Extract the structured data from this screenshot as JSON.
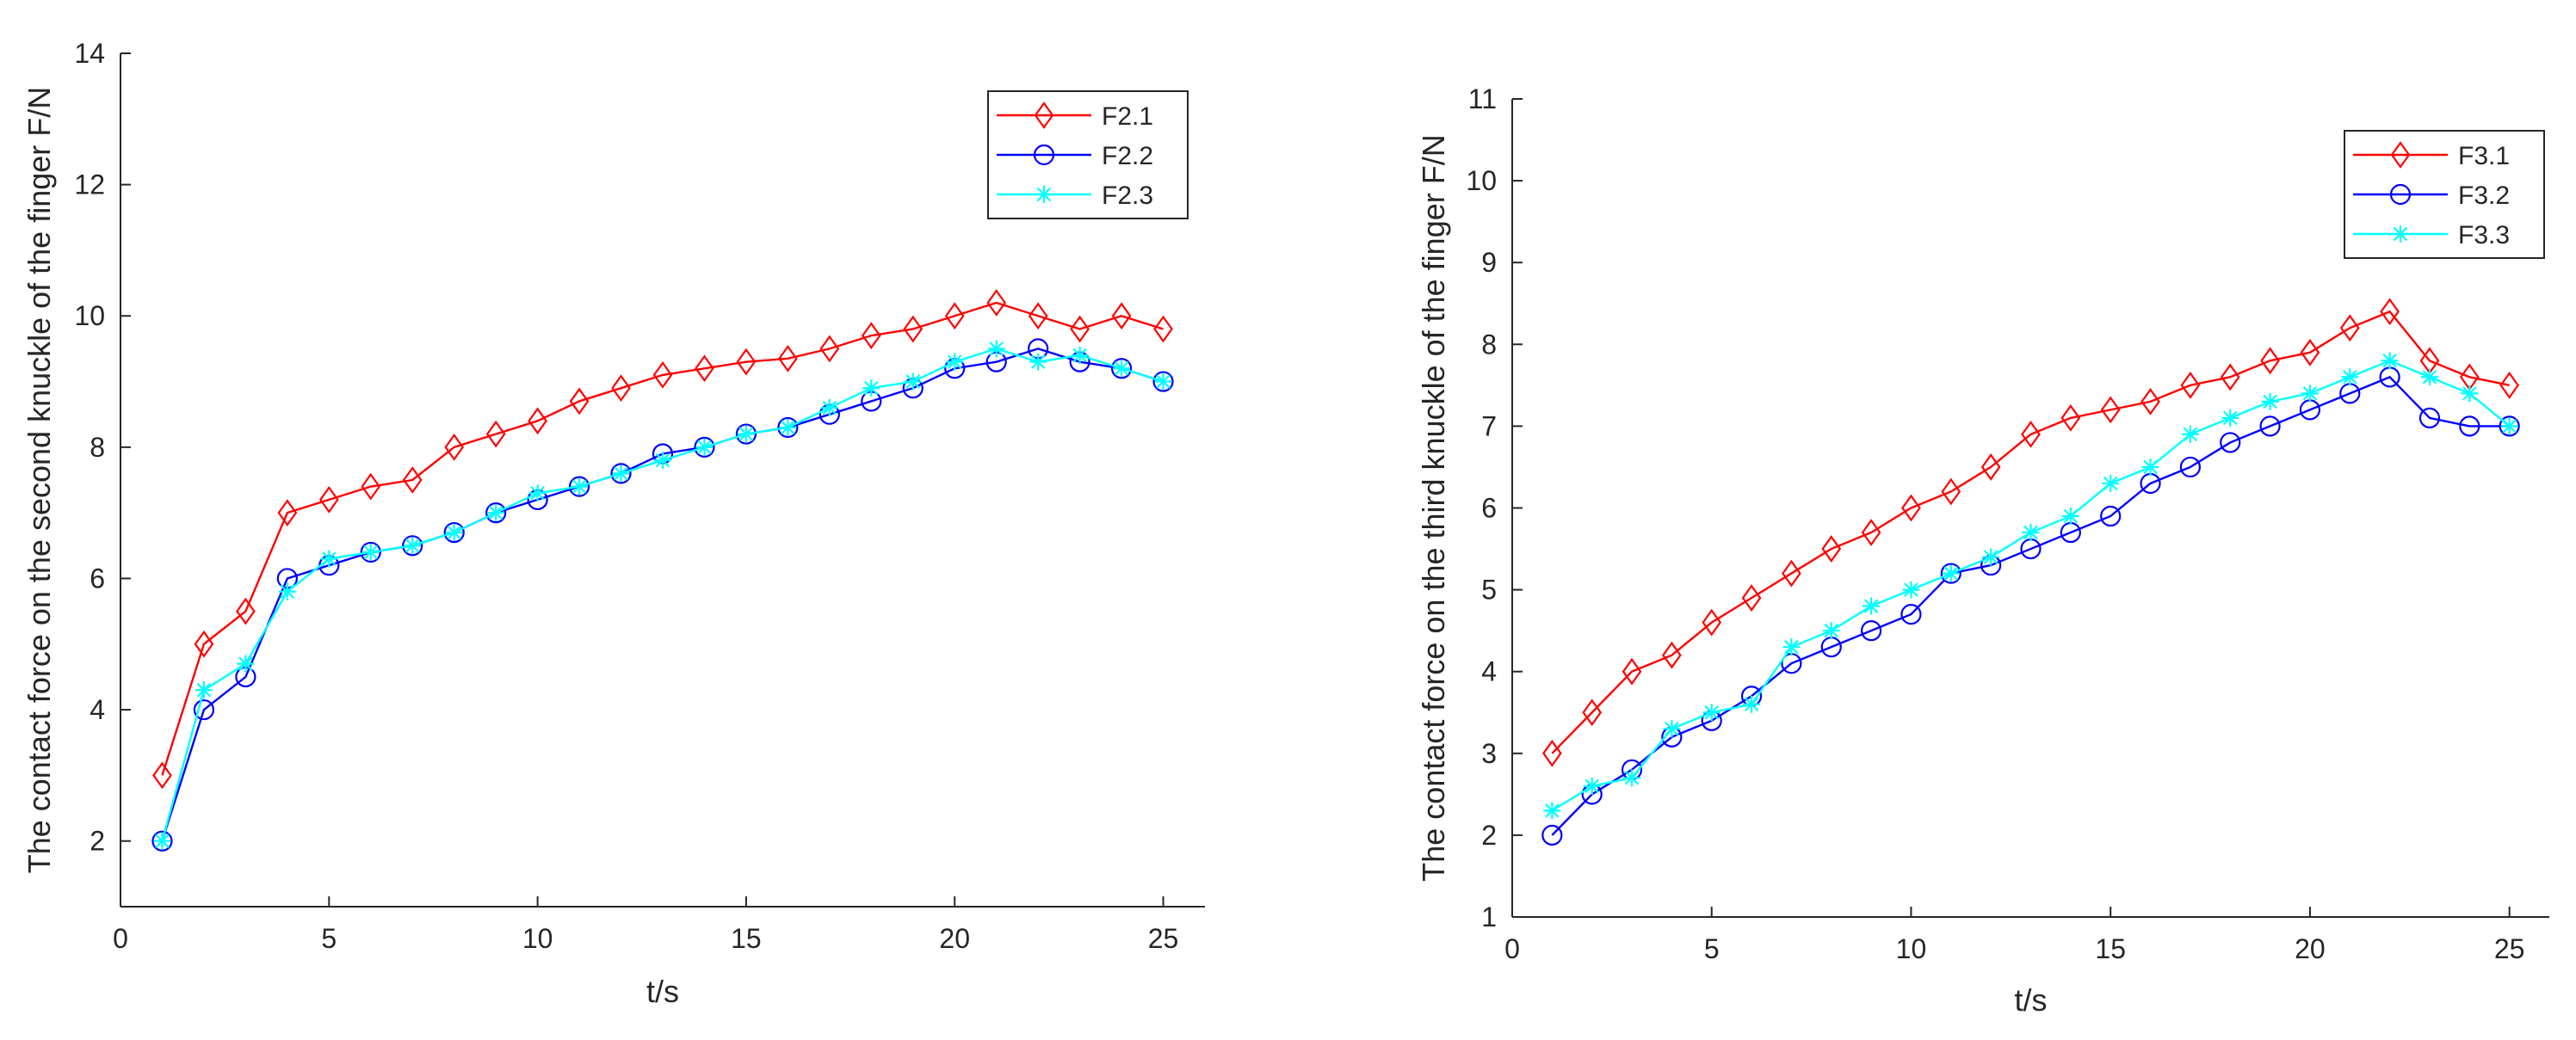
{
  "chart_data": [
    {
      "type": "line",
      "title": "",
      "xlabel": "t/s",
      "ylabel": "The contact force on the second knuckle of the finger F/N",
      "xlim": [
        0,
        26
      ],
      "ylim": [
        1,
        14
      ],
      "xticks": [
        0,
        5,
        10,
        15,
        20,
        25
      ],
      "yticks": [
        2,
        4,
        6,
        8,
        10,
        12,
        14
      ],
      "legend_position": "top-right",
      "x": [
        1,
        2,
        3,
        4,
        5,
        6,
        7,
        8,
        9,
        10,
        11,
        12,
        13,
        14,
        15,
        16,
        17,
        18,
        19,
        20,
        21,
        22,
        23,
        24,
        25
      ],
      "series": [
        {
          "name": "F2.1",
          "color": "#ff0000",
          "marker": "diamond",
          "values": [
            3.0,
            5.0,
            5.5,
            7.0,
            7.2,
            7.4,
            7.5,
            8.0,
            8.2,
            8.4,
            8.7,
            8.9,
            9.1,
            9.2,
            9.3,
            9.35,
            9.5,
            9.7,
            9.8,
            10.0,
            10.2,
            10.0,
            9.8,
            10.0,
            9.8
          ]
        },
        {
          "name": "F2.2",
          "color": "#0000ff",
          "marker": "circle",
          "values": [
            2.0,
            4.0,
            4.5,
            6.0,
            6.2,
            6.4,
            6.5,
            6.7,
            7.0,
            7.2,
            7.4,
            7.6,
            7.9,
            8.0,
            8.2,
            8.3,
            8.5,
            8.7,
            8.9,
            9.2,
            9.3,
            9.5,
            9.3,
            9.2,
            9.0
          ]
        },
        {
          "name": "F2.3",
          "color": "#00ffff",
          "marker": "asterisk",
          "values": [
            2.0,
            4.3,
            4.7,
            5.8,
            6.3,
            6.4,
            6.5,
            6.7,
            7.0,
            7.3,
            7.4,
            7.6,
            7.8,
            8.0,
            8.2,
            8.3,
            8.6,
            8.9,
            9.0,
            9.3,
            9.5,
            9.3,
            9.4,
            9.2,
            9.0
          ]
        }
      ]
    },
    {
      "type": "line",
      "title": "",
      "xlabel": "t/s",
      "ylabel": "The contact force on the third knuckle of the finger F/N",
      "xlim": [
        0,
        26
      ],
      "ylim": [
        1,
        11
      ],
      "xticks": [
        0,
        5,
        10,
        15,
        20,
        25
      ],
      "yticks": [
        1,
        2,
        3,
        4,
        5,
        6,
        7,
        8,
        9,
        10,
        11
      ],
      "legend_position": "top-right",
      "x": [
        1,
        2,
        3,
        4,
        5,
        6,
        7,
        8,
        9,
        10,
        11,
        12,
        13,
        14,
        15,
        16,
        17,
        18,
        19,
        20,
        21,
        22,
        23,
        24,
        25
      ],
      "series": [
        {
          "name": "F3.1",
          "color": "#ff0000",
          "marker": "diamond",
          "values": [
            3.0,
            3.5,
            4.0,
            4.2,
            4.6,
            4.9,
            5.2,
            5.5,
            5.7,
            6.0,
            6.2,
            6.5,
            6.9,
            7.1,
            7.2,
            7.3,
            7.5,
            7.6,
            7.8,
            7.9,
            8.2,
            8.4,
            7.8,
            7.6,
            7.5
          ]
        },
        {
          "name": "F3.2",
          "color": "#0000ff",
          "marker": "circle",
          "values": [
            2.0,
            2.5,
            2.8,
            3.2,
            3.4,
            3.7,
            4.1,
            4.3,
            4.5,
            4.7,
            5.2,
            5.3,
            5.5,
            5.7,
            5.9,
            6.3,
            6.5,
            6.8,
            7.0,
            7.2,
            7.4,
            7.6,
            7.1,
            7.0,
            7.0
          ]
        },
        {
          "name": "F3.3",
          "color": "#00ffff",
          "marker": "asterisk",
          "values": [
            2.3,
            2.6,
            2.7,
            3.3,
            3.5,
            3.6,
            4.3,
            4.5,
            4.8,
            5.0,
            5.2,
            5.4,
            5.7,
            5.9,
            6.3,
            6.5,
            6.9,
            7.1,
            7.3,
            7.4,
            7.6,
            7.8,
            7.6,
            7.4,
            7.0
          ]
        }
      ]
    }
  ]
}
